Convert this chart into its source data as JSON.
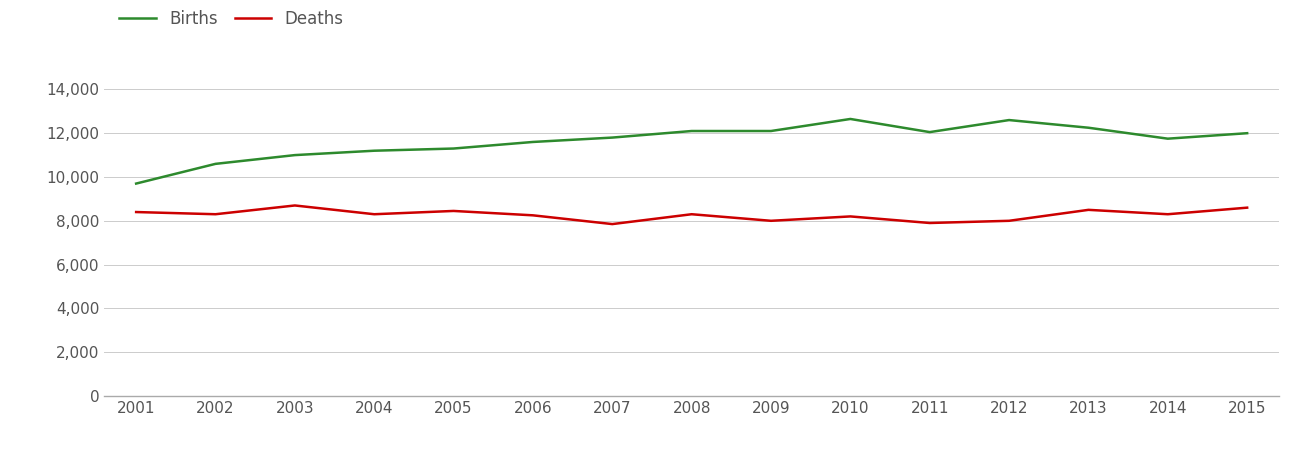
{
  "years": [
    2001,
    2002,
    2003,
    2004,
    2005,
    2006,
    2007,
    2008,
    2009,
    2010,
    2011,
    2012,
    2013,
    2014,
    2015
  ],
  "births": [
    9700,
    10600,
    11000,
    11200,
    11300,
    11600,
    11800,
    12100,
    12100,
    12650,
    12050,
    12600,
    12250,
    11750,
    12000
  ],
  "deaths": [
    8400,
    8300,
    8700,
    8300,
    8450,
    8250,
    7850,
    8300,
    8000,
    8200,
    7900,
    8000,
    8500,
    8300,
    8600
  ],
  "births_color": "#2d8a2d",
  "deaths_color": "#cc0000",
  "line_width": 1.8,
  "ylim": [
    0,
    15000
  ],
  "yticks": [
    0,
    2000,
    4000,
    6000,
    8000,
    10000,
    12000,
    14000
  ],
  "background_color": "#ffffff",
  "grid_color": "#cccccc",
  "legend_labels": [
    "Births",
    "Deaths"
  ],
  "tick_fontsize": 11,
  "legend_fontsize": 12,
  "text_color": "#555555"
}
